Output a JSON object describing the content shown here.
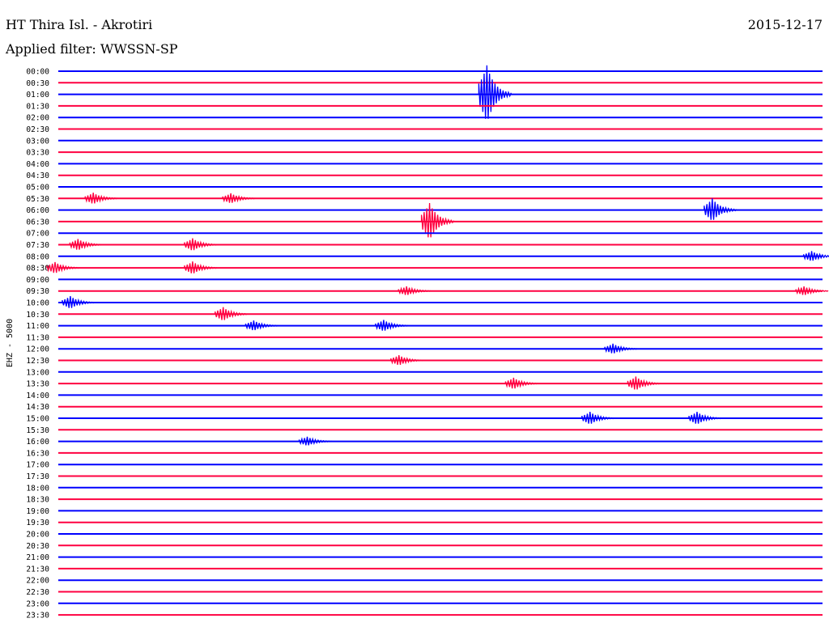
{
  "header": {
    "station": "HT Thira Isl. - Akrotiri",
    "date": "2015-12-17",
    "filter": "Applied filter: WWSSN-SP"
  },
  "channel_label": "EHZ - 5000",
  "colors": {
    "even_row": "#0000ff",
    "odd_row": "#ff0040",
    "text": "#000000",
    "background": "#ffffff"
  },
  "chart_data": {
    "type": "seismogram",
    "x_unit": "fraction of 30-minute row",
    "rows": [
      {
        "label": "00:00",
        "bursts": []
      },
      {
        "label": "00:30",
        "bursts": []
      },
      {
        "label": "01:00",
        "bursts": [
          {
            "x": 0.565,
            "amp": 2.5
          }
        ]
      },
      {
        "label": "01:30",
        "bursts": []
      },
      {
        "label": "02:00",
        "bursts": []
      },
      {
        "label": "02:30",
        "bursts": []
      },
      {
        "label": "03:00",
        "bursts": []
      },
      {
        "label": "03:30",
        "bursts": []
      },
      {
        "label": "04:00",
        "bursts": []
      },
      {
        "label": "04:30",
        "bursts": []
      },
      {
        "label": "05:00",
        "bursts": []
      },
      {
        "label": "05:30",
        "bursts": [
          {
            "x": 0.05,
            "amp": 0.5
          },
          {
            "x": 0.23,
            "amp": 0.45
          }
        ]
      },
      {
        "label": "06:00",
        "bursts": [
          {
            "x": 0.86,
            "amp": 1.0
          }
        ]
      },
      {
        "label": "06:30",
        "bursts": [
          {
            "x": 0.49,
            "amp": 1.6
          }
        ]
      },
      {
        "label": "07:00",
        "bursts": []
      },
      {
        "label": "07:30",
        "bursts": [
          {
            "x": 0.03,
            "amp": 0.5
          },
          {
            "x": 0.18,
            "amp": 0.55
          }
        ]
      },
      {
        "label": "08:00",
        "bursts": [
          {
            "x": 0.99,
            "amp": 0.45
          }
        ]
      },
      {
        "label": "08:30",
        "bursts": [
          {
            "x": 0.0,
            "amp": 0.5
          },
          {
            "x": 0.18,
            "amp": 0.55
          }
        ]
      },
      {
        "label": "09:00",
        "bursts": []
      },
      {
        "label": "09:30",
        "bursts": [
          {
            "x": 0.46,
            "amp": 0.4
          },
          {
            "x": 0.98,
            "amp": 0.4
          }
        ]
      },
      {
        "label": "10:00",
        "bursts": [
          {
            "x": 0.02,
            "amp": 0.55
          }
        ]
      },
      {
        "label": "10:30",
        "bursts": [
          {
            "x": 0.22,
            "amp": 0.6
          }
        ]
      },
      {
        "label": "11:00",
        "bursts": [
          {
            "x": 0.26,
            "amp": 0.45
          },
          {
            "x": 0.43,
            "amp": 0.5
          }
        ]
      },
      {
        "label": "11:30",
        "bursts": []
      },
      {
        "label": "12:00",
        "bursts": [
          {
            "x": 0.73,
            "amp": 0.45
          }
        ]
      },
      {
        "label": "12:30",
        "bursts": [
          {
            "x": 0.45,
            "amp": 0.45
          }
        ]
      },
      {
        "label": "13:00",
        "bursts": []
      },
      {
        "label": "13:30",
        "bursts": [
          {
            "x": 0.6,
            "amp": 0.5
          },
          {
            "x": 0.76,
            "amp": 0.6
          }
        ]
      },
      {
        "label": "14:00",
        "bursts": []
      },
      {
        "label": "14:30",
        "bursts": []
      },
      {
        "label": "15:00",
        "bursts": [
          {
            "x": 0.7,
            "amp": 0.55
          },
          {
            "x": 0.84,
            "amp": 0.55
          }
        ]
      },
      {
        "label": "15:30",
        "bursts": []
      },
      {
        "label": "16:00",
        "bursts": [
          {
            "x": 0.33,
            "amp": 0.4
          }
        ]
      },
      {
        "label": "16:30",
        "bursts": []
      },
      {
        "label": "17:00",
        "bursts": []
      },
      {
        "label": "17:30",
        "bursts": []
      },
      {
        "label": "18:00",
        "bursts": []
      },
      {
        "label": "18:30",
        "bursts": []
      },
      {
        "label": "19:00",
        "bursts": []
      },
      {
        "label": "19:30",
        "bursts": []
      },
      {
        "label": "20:00",
        "bursts": []
      },
      {
        "label": "20:30",
        "bursts": []
      },
      {
        "label": "21:00",
        "bursts": []
      },
      {
        "label": "21:30",
        "bursts": []
      },
      {
        "label": "22:00",
        "bursts": []
      },
      {
        "label": "22:30",
        "bursts": []
      },
      {
        "label": "23:00",
        "bursts": []
      },
      {
        "label": "23:30",
        "bursts": []
      }
    ]
  }
}
